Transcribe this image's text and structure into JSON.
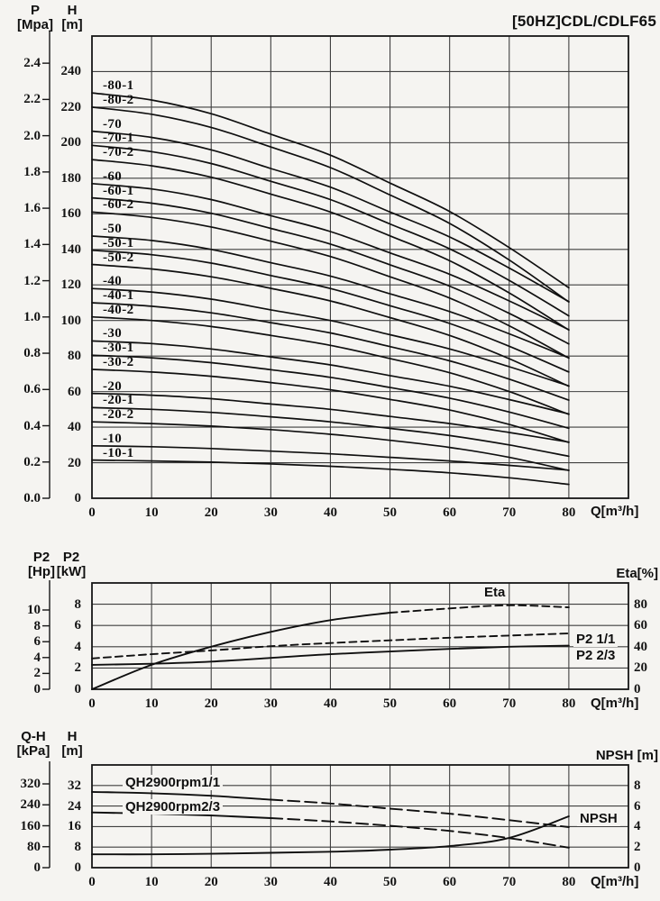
{
  "title": "[50HZ]CDL/CDLF65",
  "chart_data": [
    {
      "id": "main-qh-curves",
      "type": "line",
      "title": "[50HZ]CDL/CDLF65",
      "xlabel": "Q[m³/h]",
      "x_ticks": [
        0,
        10,
        20,
        30,
        40,
        50,
        60,
        70,
        80
      ],
      "xlim": [
        0,
        90
      ],
      "ylim_m": [
        0,
        260
      ],
      "left_axes": [
        {
          "name": "P",
          "unit": "[Mpa]"
        },
        {
          "name": "H",
          "unit": "[m]"
        }
      ],
      "mpa_ticks": [
        "0.0",
        "0.2",
        "0.4",
        "0.6",
        "0.8",
        "1.0",
        "1.2",
        "1.4",
        "1.6",
        "1.8",
        "2.0",
        "2.2",
        "2.4"
      ],
      "m_ticks": [
        0,
        20,
        40,
        60,
        80,
        100,
        120,
        140,
        160,
        180,
        200,
        220,
        240
      ],
      "x": [
        0,
        10,
        20,
        30,
        40,
        50,
        60,
        70,
        80
      ],
      "series": [
        {
          "name": "-80-1",
          "values": [
            228,
            224,
            216.3,
            204.8,
            193,
            177.3,
            161.3,
            141,
            118.4
          ]
        },
        {
          "name": "-80-2",
          "values": [
            220,
            216,
            208.6,
            197.6,
            186,
            170.6,
            154.6,
            134,
            110.4
          ]
        },
        {
          "name": "-70",
          "values": [
            206.5,
            203,
            196,
            185.5,
            175,
            161,
            147,
            129.5,
            110.6
          ]
        },
        {
          "name": "-70-1",
          "values": [
            198.5,
            195,
            188.3,
            178.3,
            168,
            154.3,
            140.3,
            122.5,
            102.6
          ]
        },
        {
          "name": "-70-2",
          "values": [
            190.5,
            187,
            180.6,
            171.1,
            161,
            147.6,
            133.6,
            115.5,
            94.6
          ]
        },
        {
          "name": "-60",
          "values": [
            177,
            174,
            168,
            159,
            150,
            138,
            126,
            111,
            94.8
          ]
        },
        {
          "name": "-60-1",
          "values": [
            169,
            166,
            160.3,
            151.8,
            143,
            131.3,
            119.3,
            104,
            86.8
          ]
        },
        {
          "name": "-60-2",
          "values": [
            161,
            158,
            152.6,
            144.6,
            136,
            124.6,
            112.6,
            97,
            78.8
          ]
        },
        {
          "name": "-50",
          "values": [
            147.5,
            145,
            140,
            132.5,
            125,
            115,
            105,
            92.5,
            79
          ]
        },
        {
          "name": "-50-1",
          "values": [
            139.5,
            137,
            132.3,
            125.3,
            118,
            108.3,
            98.3,
            85.5,
            71
          ]
        },
        {
          "name": "-50-2",
          "values": [
            131.5,
            129,
            124.6,
            118.1,
            111,
            101.6,
            91.6,
            78.5,
            63
          ]
        },
        {
          "name": "-40",
          "values": [
            118,
            116,
            112,
            106,
            100,
            92,
            84,
            74,
            63.2
          ]
        },
        {
          "name": "-40-1",
          "values": [
            110,
            108,
            104.3,
            98.8,
            93,
            85.3,
            77.3,
            67,
            55.2
          ]
        },
        {
          "name": "-40-2",
          "values": [
            102,
            100,
            96.6,
            91.6,
            86,
            78.6,
            70.6,
            60,
            47.2
          ]
        },
        {
          "name": "-30",
          "values": [
            88.5,
            87,
            84,
            79.5,
            75,
            69,
            63,
            55.5,
            47.4
          ]
        },
        {
          "name": "-30-1",
          "values": [
            80.5,
            79,
            76.3,
            72.3,
            68,
            62.3,
            56.3,
            48.5,
            39.4
          ]
        },
        {
          "name": "-30-2",
          "values": [
            72.5,
            71,
            68.6,
            65.1,
            61,
            55.6,
            49.6,
            41.5,
            31.4
          ]
        },
        {
          "name": "-20",
          "values": [
            59,
            58,
            56,
            53,
            50,
            46,
            42,
            37,
            31.6
          ]
        },
        {
          "name": "-20-1",
          "values": [
            51,
            50,
            48.3,
            45.8,
            43,
            39.3,
            35.3,
            30,
            23.6
          ]
        },
        {
          "name": "-20-2",
          "values": [
            43,
            42,
            40.6,
            38.6,
            36,
            32.6,
            28.6,
            23,
            15.6
          ]
        },
        {
          "name": "-10",
          "values": [
            29.5,
            29,
            28,
            26.5,
            25,
            23,
            21,
            18.5,
            15.8
          ]
        },
        {
          "name": "-10-1",
          "values": [
            21.5,
            21,
            20.3,
            19.3,
            18,
            16.3,
            14.3,
            11.5,
            7.8
          ]
        }
      ]
    },
    {
      "id": "power-efficiency",
      "type": "line",
      "xlabel": "Q[m³/h]",
      "x_ticks": [
        0,
        10,
        20,
        30,
        40,
        50,
        60,
        70,
        80
      ],
      "xlim": [
        0,
        90
      ],
      "kw_lim": [
        0,
        10
      ],
      "left_axes": [
        {
          "name": "P2",
          "unit": "[Hp]"
        },
        {
          "name": "P2",
          "unit": "[kW]"
        }
      ],
      "right_axis_label": "Eta[%]",
      "hp_ticks": [
        0,
        2,
        4,
        6,
        8,
        10
      ],
      "kw_ticks": [
        0,
        2,
        4,
        6,
        8
      ],
      "eta_ticks": [
        0,
        20,
        40,
        60,
        80
      ],
      "x": [
        0,
        10,
        20,
        30,
        40,
        50,
        60,
        70,
        80
      ],
      "series": [
        {
          "name": "Eta",
          "axis": "eta",
          "unit": "%",
          "dash_from_idx": 5,
          "values": [
            0,
            23,
            40,
            54,
            65,
            72,
            76,
            79,
            77
          ]
        },
        {
          "name": "P2 1/1",
          "axis": "kw",
          "unit": "kW",
          "dash_from_idx": 0,
          "values": [
            2.9,
            3.3,
            3.65,
            4.05,
            4.35,
            4.6,
            4.85,
            5.05,
            5.25
          ]
        },
        {
          "name": "P2 2/3",
          "axis": "kw",
          "unit": "kW",
          "values": [
            2.3,
            2.4,
            2.6,
            2.95,
            3.3,
            3.55,
            3.8,
            4.0,
            4.1
          ]
        }
      ]
    },
    {
      "id": "single-stage-qh-npsh",
      "type": "line",
      "xlabel": "Q[m³/h]",
      "x_ticks": [
        0,
        10,
        20,
        30,
        40,
        50,
        60,
        70,
        80
      ],
      "xlim": [
        0,
        90
      ],
      "m_lim": [
        0,
        40
      ],
      "left_axes": [
        {
          "name": "Q-H",
          "unit": "[kPa]"
        },
        {
          "name": "H",
          "unit": "[m]"
        }
      ],
      "right_axis_label": "NPSH [m]",
      "kpa_ticks": [
        0,
        80,
        160,
        240,
        320
      ],
      "m_ticks": [
        0,
        8,
        16,
        24,
        32
      ],
      "npsh_ticks": [
        0,
        2,
        4,
        6,
        8
      ],
      "x": [
        0,
        10,
        20,
        30,
        40,
        50,
        60,
        70,
        80
      ],
      "series": [
        {
          "name": "QH2900rpm1/1",
          "axis": "m",
          "unit": "m",
          "dash_from_idx": 3,
          "values": [
            29.5,
            29,
            28,
            26.5,
            25,
            23,
            21,
            18.5,
            15.8
          ]
        },
        {
          "name": "QH2900rpm2/3",
          "axis": "m",
          "unit": "m",
          "dash_from_idx": 3,
          "values": [
            21.5,
            21,
            20.3,
            19.3,
            18,
            16.3,
            14.3,
            11.5,
            7.8
          ]
        },
        {
          "name": "NPSH",
          "axis": "npsh",
          "unit": "m",
          "values": [
            1.3,
            1.3,
            1.35,
            1.45,
            1.55,
            1.75,
            2.1,
            2.9,
            5.0
          ]
        }
      ]
    }
  ]
}
